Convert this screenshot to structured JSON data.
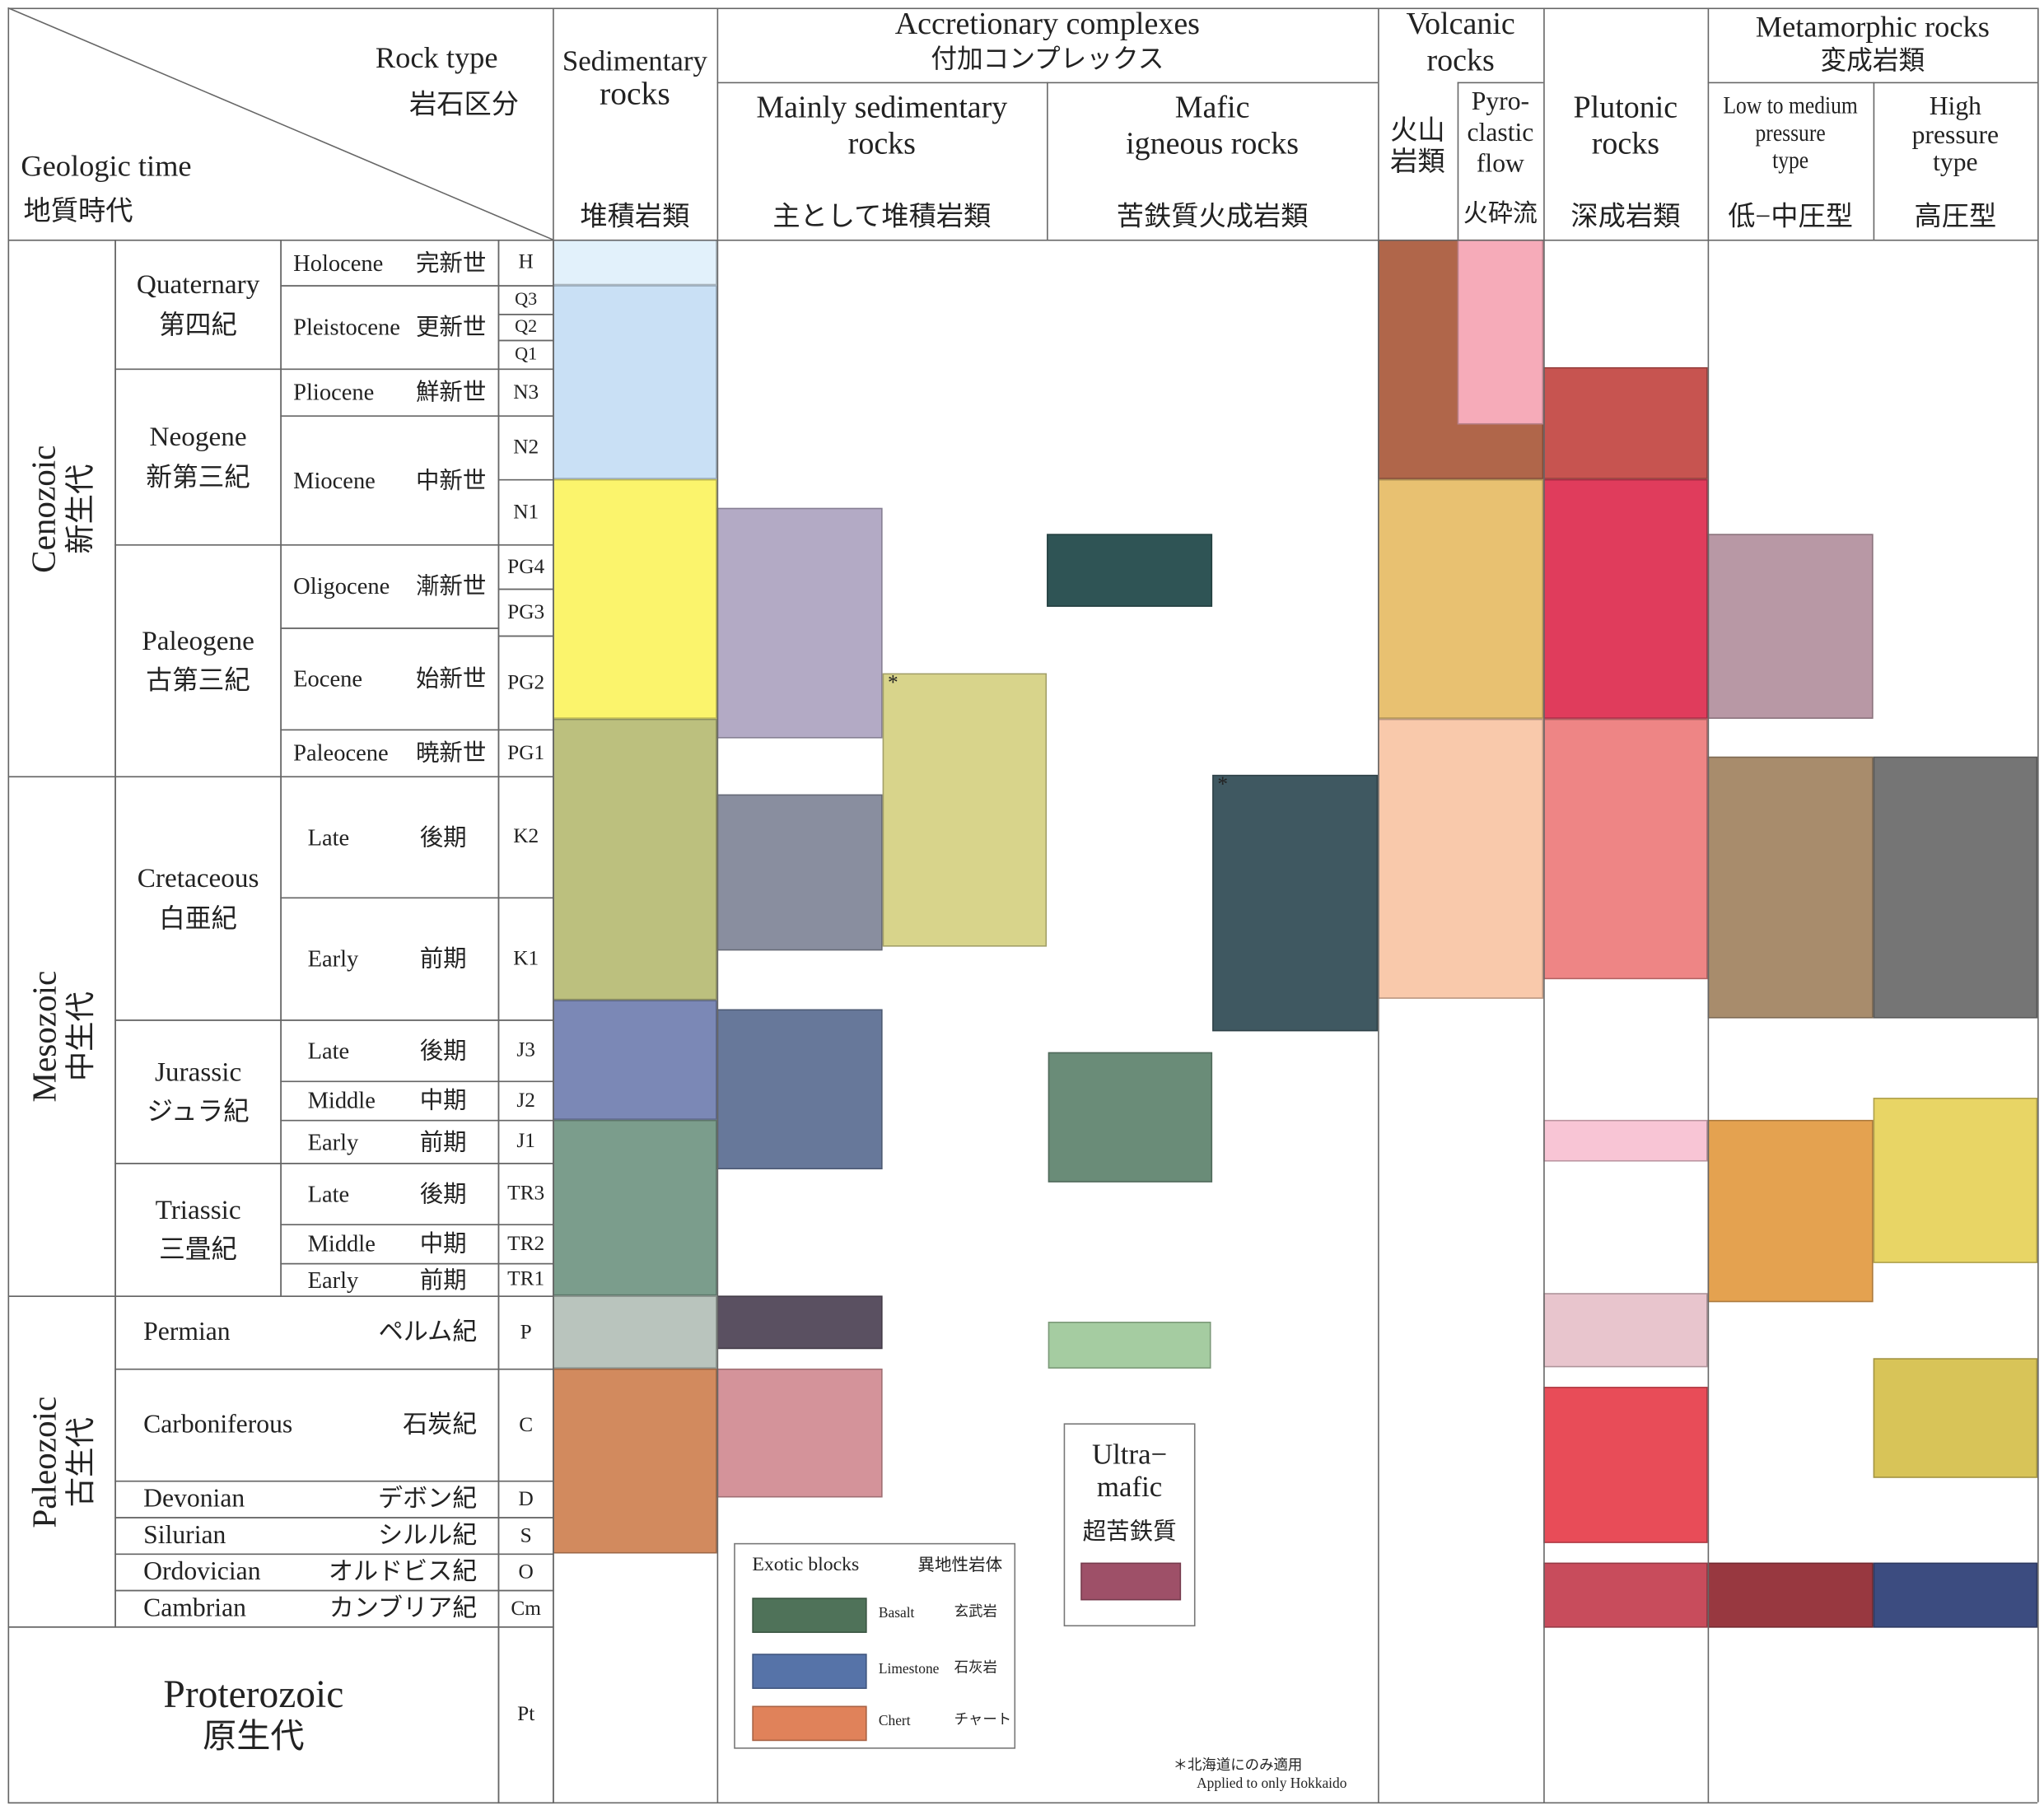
{
  "header": {
    "corner": {
      "rock_type_en": "Rock type",
      "rock_type_ja": "岩石区分",
      "geologic_time_en": "Geologic time",
      "geologic_time_ja": "地質時代"
    },
    "sedimentary": {
      "en1": "Sedimentary",
      "en2": "rocks",
      "ja": "堆積岩類"
    },
    "accretionary": {
      "en": "Accretionary complexes",
      "ja": "付加コンプレックス",
      "mainly_sed": {
        "en1": "Mainly sedimentary",
        "en2": "rocks",
        "ja": "主として堆積岩類"
      },
      "mafic": {
        "en1": "Mafic",
        "en2": "igneous rocks",
        "ja": "苦鉄質火成岩類"
      }
    },
    "volcanic": {
      "en1": "Volcanic",
      "en2": "rocks",
      "ja1": "火山",
      "ja2": "岩類",
      "pyro": {
        "en1": "Pyro-",
        "en2": "clastic",
        "en3": "flow",
        "ja": "火砕流"
      }
    },
    "plutonic": {
      "en1": "Plutonic",
      "en2": "rocks",
      "ja": "深成岩類"
    },
    "metamorphic": {
      "en": "Metamorphic rocks",
      "ja": "変成岩類",
      "low": {
        "en1": "Low to medium",
        "en2": "pressure",
        "en3": "type",
        "ja": "低−中圧型"
      },
      "high": {
        "en1": "High",
        "en2": "pressure",
        "en3": "type",
        "ja": "高圧型"
      }
    }
  },
  "eras": [
    {
      "en": "Cenozoic",
      "ja": "新生代"
    },
    {
      "en": "Mesozoic",
      "ja": "中生代"
    },
    {
      "en": "Paleozoic",
      "ja": "古生代"
    },
    {
      "en": "Proterozoic",
      "ja": "原生代"
    }
  ],
  "periods": [
    {
      "en": "Quaternary",
      "ja": "第四紀"
    },
    {
      "en": "Neogene",
      "ja": "新第三紀"
    },
    {
      "en": "Paleogene",
      "ja": "古第三紀"
    },
    {
      "en": "Cretaceous",
      "ja": "白亜紀"
    },
    {
      "en": "Jurassic",
      "ja": "ジュラ紀"
    },
    {
      "en": "Triassic",
      "ja": "三畳紀"
    },
    {
      "en": "Permian",
      "ja": "ペルム紀"
    },
    {
      "en": "Carboniferous",
      "ja": "石炭紀"
    },
    {
      "en": "Devonian",
      "ja": "デボン紀"
    },
    {
      "en": "Silurian",
      "ja": "シルル紀"
    },
    {
      "en": "Ordovician",
      "ja": "オルドビス紀"
    },
    {
      "en": "Cambrian",
      "ja": "カンブリア紀"
    }
  ],
  "epochs": [
    {
      "en": "Holocene",
      "ja": "完新世"
    },
    {
      "en": "Pleistocene",
      "ja": "更新世"
    },
    {
      "en": "Pliocene",
      "ja": "鮮新世"
    },
    {
      "en": "Miocene",
      "ja": "中新世"
    },
    {
      "en": "Oligocene",
      "ja": "漸新世"
    },
    {
      "en": "Eocene",
      "ja": "始新世"
    },
    {
      "en": "Paleocene",
      "ja": "暁新世"
    },
    {
      "en": "Late",
      "ja": "後期"
    },
    {
      "en": "Early",
      "ja": "前期"
    },
    {
      "en": "Late",
      "ja": "後期"
    },
    {
      "en": "Middle",
      "ja": "中期"
    },
    {
      "en": "Early",
      "ja": "前期"
    },
    {
      "en": "Late",
      "ja": "後期"
    },
    {
      "en": "Middle",
      "ja": "中期"
    },
    {
      "en": "Early",
      "ja": "前期"
    }
  ],
  "codes": [
    "H",
    "Q3",
    "Q2",
    "Q1",
    "N3",
    "N2",
    "N1",
    "PG4",
    "PG3",
    "PG2",
    "PG1",
    "K2",
    "K1",
    "J3",
    "J2",
    "J1",
    "TR3",
    "TR2",
    "TR1",
    "P",
    "C",
    "D",
    "S",
    "O",
    "Cm",
    "Pt"
  ],
  "blocks": [
    {
      "column": "sedimentary",
      "color": "#e2f1fb"
    },
    {
      "column": "sedimentary",
      "color": "#c9e0f5"
    },
    {
      "column": "sedimentary",
      "color": "#fbf46c"
    },
    {
      "column": "sedimentary",
      "color": "#bcc07e"
    },
    {
      "column": "sedimentary",
      "color": "#7b88b6"
    },
    {
      "column": "sedimentary",
      "color": "#7b9d8c"
    },
    {
      "column": "sedimentary",
      "color": "#b9c4bd"
    },
    {
      "column": "sedimentary",
      "color": "#d28a5e"
    },
    {
      "column": "mainly-sedimentary",
      "color": "#b3aac5"
    },
    {
      "column": "mainly-sedimentary",
      "color": "#898e9f"
    },
    {
      "column": "mainly-sedimentary",
      "color": "#67789a"
    },
    {
      "column": "mainly-sedimentary",
      "color": "#5a5061"
    },
    {
      "column": "mainly-sedimentary",
      "color": "#d4939a"
    },
    {
      "column": "mainly-sedimentary-hokkaido",
      "color": "#d8d48b"
    },
    {
      "column": "mafic",
      "color": "#2f5455"
    },
    {
      "column": "mafic",
      "color": "#6a8c78"
    },
    {
      "column": "mafic",
      "color": "#a5cca1"
    },
    {
      "column": "mafic-hokkaido",
      "color": "#3f5861"
    },
    {
      "column": "volcanic",
      "color": "#b0664a"
    },
    {
      "column": "pyroclastic",
      "color": "#f6abb9"
    },
    {
      "column": "volcanic",
      "color": "#e8c171"
    },
    {
      "column": "volcanic",
      "color": "#f9c9ab"
    },
    {
      "column": "plutonic",
      "color": "#c75450"
    },
    {
      "column": "plutonic",
      "color": "#e03c5c"
    },
    {
      "column": "plutonic",
      "color": "#ee8585"
    },
    {
      "column": "plutonic",
      "color": "#f8c5d5"
    },
    {
      "column": "plutonic",
      "color": "#e8c5cd"
    },
    {
      "column": "plutonic",
      "color": "#e84c58"
    },
    {
      "column": "plutonic",
      "color": "#c84c5c"
    },
    {
      "column": "metamorphic-low",
      "color": "#b898a5"
    },
    {
      "column": "metamorphic-low",
      "color": "#a88c6c"
    },
    {
      "column": "metamorphic-low",
      "color": "#e4a250"
    },
    {
      "column": "metamorphic-low",
      "color": "#983840"
    },
    {
      "column": "metamorphic-high",
      "color": "#757575"
    },
    {
      "column": "metamorphic-high",
      "color": "#e8d565"
    },
    {
      "column": "metamorphic-high",
      "color": "#d8c458"
    },
    {
      "column": "metamorphic-high",
      "color": "#3c4c80"
    }
  ],
  "asterisk": "*",
  "ultramafic": {
    "en1": "Ultra−",
    "en2": "mafic",
    "ja": "超苦鉄質",
    "color": "#9e5068"
  },
  "legend": {
    "title_en": "Exotic blocks",
    "title_ja": "異地性岩体",
    "items": [
      {
        "en": "Basalt",
        "ja": "玄武岩",
        "color": "#4f7259"
      },
      {
        "en": "Limestone",
        "ja": "石灰岩",
        "color": "#5673a8"
      },
      {
        "en": "Chert",
        "ja": "チャート",
        "color": "#e0825a"
      }
    ]
  },
  "footnote": {
    "ja": "＊北海道にのみ適用",
    "en": "Applied to only Hokkaido"
  }
}
